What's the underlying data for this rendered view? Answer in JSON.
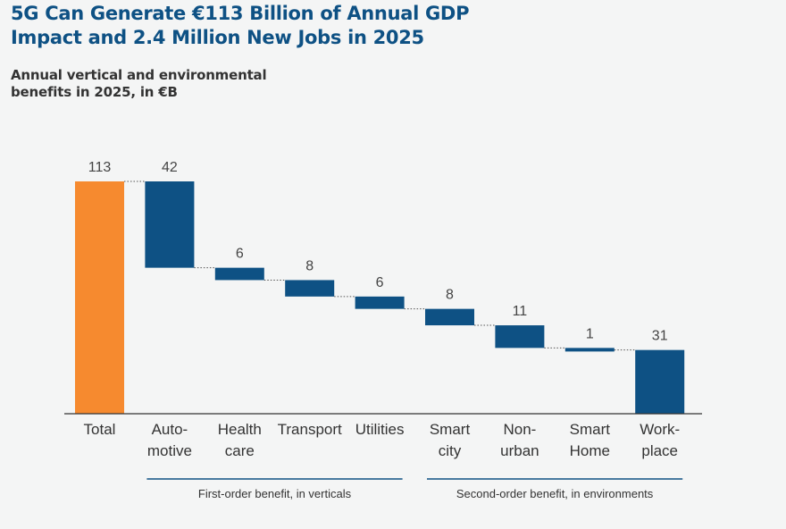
{
  "chart_data": {
    "type": "bar",
    "subtype": "waterfall",
    "title": "5G Can Generate €113 Billion of Annual GDP Impact and 2.4 Million New Jobs in 2025",
    "subtitle": "Annual vertical and environmental benefits in 2025, in €B",
    "categories": [
      [
        "Total"
      ],
      [
        "Auto-",
        "motive"
      ],
      [
        "Health",
        "care"
      ],
      [
        "Transport"
      ],
      [
        "Utilities"
      ],
      [
        "Smart",
        "city"
      ],
      [
        "Non-",
        "urban"
      ],
      [
        "Smart",
        "Home"
      ],
      [
        "Work-",
        "place"
      ]
    ],
    "values": [
      113,
      42,
      6,
      8,
      6,
      8,
      11,
      1,
      31
    ],
    "ylim": [
      0,
      113
    ],
    "grid": false,
    "colors": {
      "total": "#f68a2f",
      "component": "#0e5184",
      "connector": "#555555",
      "axis": "#333333"
    },
    "groups": [
      {
        "label": "First-order benefit, in verticals",
        "from": 1,
        "to": 4
      },
      {
        "label": "Second-order benefit, in environments",
        "from": 5,
        "to": 8
      }
    ]
  }
}
